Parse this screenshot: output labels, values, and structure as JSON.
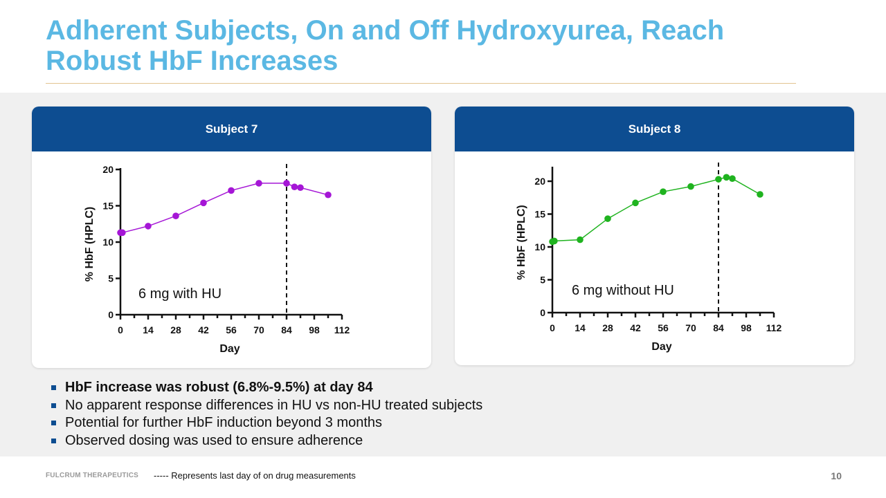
{
  "slide": {
    "title": "Adherent Subjects, On and Off Hydroxyurea, Reach Robust HbF Increases",
    "bullets": [
      "HbF increase was robust (6.8%-9.5%) at day 84",
      "No apparent response differences in HU vs non-HU treated subjects",
      "Potential for further HbF induction beyond 3 months",
      "Observed dosing was used to ensure adherence"
    ],
    "footer_logo": "FULCRUM THERAPEUTICS",
    "footer_note": "----- Represents last day of on drug measurements",
    "page_number": "10"
  },
  "colors": {
    "title": "#5bb8e3",
    "header": "#0d4d91",
    "subject7": "#a516d6",
    "subject8": "#1fb31f"
  },
  "chart_data": [
    {
      "type": "line",
      "panel_title": "Subject 7",
      "annotation": "6 mg with HU",
      "xlabel": "Day",
      "ylabel": "% HbF (HPLC)",
      "xlim": [
        0,
        112
      ],
      "ylim": [
        0,
        20
      ],
      "xticks": [
        0,
        14,
        28,
        42,
        56,
        70,
        84,
        98,
        112
      ],
      "yticks": [
        0,
        5,
        10,
        15,
        20
      ],
      "vline_x": 84,
      "series": [
        {
          "name": "Subject 7",
          "color": "#a516d6",
          "x": [
            0,
            1,
            14,
            28,
            42,
            56,
            70,
            84,
            88,
            91,
            105
          ],
          "y": [
            11.3,
            11.3,
            12.2,
            13.6,
            15.4,
            17.1,
            18.1,
            18.1,
            17.6,
            17.5,
            16.5
          ]
        }
      ]
    },
    {
      "type": "line",
      "panel_title": "Subject 8",
      "annotation": "6 mg without HU",
      "xlabel": "Day",
      "ylabel": "% HbF (HPLC)",
      "xlim": [
        0,
        112
      ],
      "ylim": [
        0,
        22
      ],
      "xticks": [
        0,
        14,
        28,
        42,
        56,
        70,
        84,
        98,
        112
      ],
      "yticks": [
        0,
        5,
        10,
        15,
        20
      ],
      "vline_x": 84,
      "series": [
        {
          "name": "Subject 8",
          "color": "#1fb31f",
          "x": [
            0,
            1,
            14,
            28,
            42,
            56,
            70,
            84,
            88,
            91,
            105
          ],
          "y": [
            10.8,
            10.9,
            11.1,
            14.3,
            16.7,
            18.4,
            19.2,
            20.3,
            20.6,
            20.4,
            18.0
          ]
        }
      ]
    }
  ]
}
